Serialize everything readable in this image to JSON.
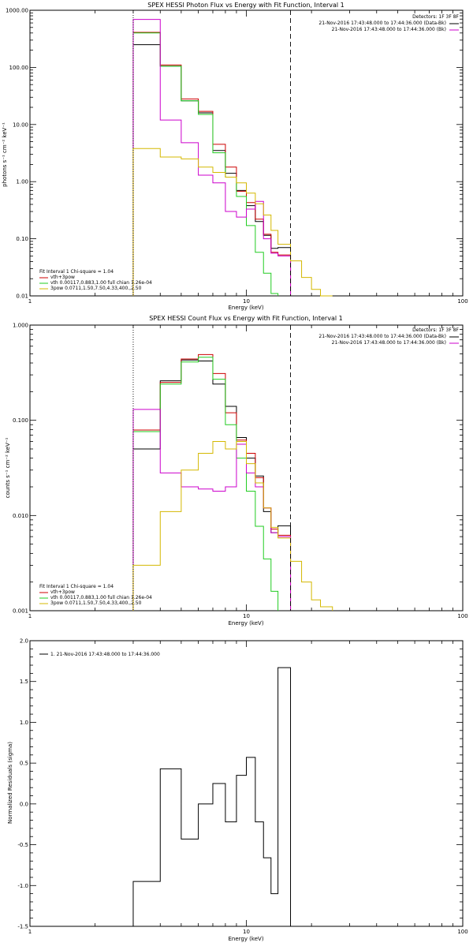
{
  "colors": {
    "data": "#000000",
    "total": "#cc0000",
    "thermal": "#22cc22",
    "nonthermal": "#d4b800",
    "background": "#cc00cc"
  },
  "chart_data": [
    {
      "id": "photon",
      "type": "line",
      "title": "SPEX HESSI Photon Flux vs Energy with Fit Function, Interval 1",
      "xlabel": "Energy (keV)",
      "ylabel": "photons s⁻¹ cm⁻² keV⁻¹",
      "xscale": "log",
      "yscale": "log",
      "xlim": [
        1,
        100
      ],
      "ylim": [
        0.01,
        1000
      ],
      "xticks": [
        {
          "v": 1,
          "label": "1"
        },
        {
          "v": 10,
          "label": "10"
        },
        {
          "v": 100,
          "label": "100"
        }
      ],
      "yticks": [
        {
          "v": 0.01,
          "label": "0.01"
        },
        {
          "v": 0.1,
          "label": "0.10"
        },
        {
          "v": 1,
          "label": "1.00"
        },
        {
          "v": 10,
          "label": "10.00"
        },
        {
          "v": 100,
          "label": "100.00"
        },
        {
          "v": 1000,
          "label": "1000.00"
        }
      ],
      "vlines": [
        {
          "x": 3.0,
          "style": "dotted"
        },
        {
          "x": 16.0,
          "style": "dashed"
        }
      ],
      "top_right": {
        "detectors": "Detectors: 1F 3F 8F",
        "lines": [
          "21-Nov-2016 17:43:48.000 to 17:44:36.000 (Data-Bk)",
          "21-Nov-2016 17:43:48.000 to 17:44:36.000 (Bk)"
        ],
        "line_colors": [
          "data",
          "background"
        ]
      },
      "legend": {
        "header": "Fit Interval  1    Chi-square = 1.04",
        "entries": [
          {
            "label": "vth+3pow",
            "color": "total"
          },
          {
            "label": "vth 0.00117,0.883,1.00   full chian 1.26e-04",
            "color": "thermal"
          },
          {
            "label": "3pow 0.0711,1.50,7.50,4.33,400.,2.50",
            "color": "nonthermal"
          }
        ]
      },
      "bin_edges": [
        3,
        4,
        5,
        6,
        7,
        8,
        9,
        10,
        11,
        12,
        13,
        14,
        16,
        18,
        20,
        22,
        25
      ],
      "series": [
        {
          "color": "data",
          "start": 0,
          "values": [
            250,
            105,
            26,
            16,
            3.5,
            1.4,
            0.7,
            0.38,
            0.2,
            0.115,
            0.068,
            0.07
          ]
        },
        {
          "color": "total",
          "start": 0,
          "values": [
            410,
            110,
            28,
            17,
            4.5,
            1.8,
            0.68,
            0.43,
            0.22,
            0.12,
            0.058,
            0.052
          ]
        },
        {
          "color": "thermal",
          "start": 0,
          "values": [
            400,
            105,
            26,
            15,
            3.2,
            1.2,
            0.55,
            0.17,
            0.058,
            0.025,
            0.011
          ]
        },
        {
          "color": "background",
          "start": 0,
          "values": [
            690,
            12,
            4.8,
            1.3,
            0.95,
            0.3,
            0.24,
            0.33,
            0.45,
            0.1,
            0.056,
            0.05
          ]
        },
        {
          "color": "nonthermal",
          "start": 0,
          "values": [
            3.8,
            2.7,
            2.5,
            1.8,
            1.45,
            1.2,
            0.95,
            0.63,
            0.41,
            0.26,
            0.14,
            0.08,
            0.041,
            0.021,
            0.013,
            0.008
          ]
        }
      ]
    },
    {
      "id": "count",
      "type": "line",
      "title": "SPEX HESSI Count Flux vs Energy with Fit Function, Interval 1",
      "xlabel": "Energy (keV)",
      "ylabel": "counts s⁻¹ cm⁻² keV⁻¹",
      "xscale": "log",
      "yscale": "log",
      "xlim": [
        1,
        100
      ],
      "ylim": [
        0.001,
        1
      ],
      "xticks": [
        {
          "v": 1,
          "label": "1"
        },
        {
          "v": 10,
          "label": "10"
        },
        {
          "v": 100,
          "label": "100"
        }
      ],
      "yticks": [
        {
          "v": 0.001,
          "label": "0.001"
        },
        {
          "v": 0.01,
          "label": "0.010"
        },
        {
          "v": 0.1,
          "label": "0.100"
        },
        {
          "v": 1,
          "label": "1.000"
        }
      ],
      "vlines": [
        {
          "x": 3.0,
          "style": "dotted"
        },
        {
          "x": 16.0,
          "style": "dashed"
        }
      ],
      "top_right": {
        "detectors": "Detectors: 1F 3F 8F",
        "lines": [
          "21-Nov-2016 17:43:48.000 to 17:44:36.000 (Data-Bk)",
          "21-Nov-2016 17:43:48.000 to 17:44:36.000 (Bk)"
        ],
        "line_colors": [
          "data",
          "background"
        ]
      },
      "legend": {
        "header": "Fit Interval  1    Chi-square = 1.04",
        "entries": [
          {
            "label": "vth+3pow",
            "color": "total"
          },
          {
            "label": "vth 0.00117,0.883,1.00   full chian 1.26e-04",
            "color": "thermal"
          },
          {
            "label": "3pow 0.0711,1.50,7.50,4.33,400.,2.50",
            "color": "nonthermal"
          }
        ]
      },
      "bin_edges": [
        3,
        4,
        5,
        6,
        7,
        8,
        9,
        10,
        11,
        12,
        13,
        14,
        16,
        18,
        20,
        22,
        25
      ],
      "series": [
        {
          "color": "data",
          "start": 0,
          "values": [
            0.05,
            0.26,
            0.43,
            0.42,
            0.24,
            0.14,
            0.066,
            0.04,
            0.026,
            0.011,
            0.0066,
            0.0078
          ]
        },
        {
          "color": "total",
          "start": 0,
          "values": [
            0.079,
            0.25,
            0.44,
            0.49,
            0.31,
            0.12,
            0.062,
            0.045,
            0.025,
            0.012,
            0.0072,
            0.0062
          ]
        },
        {
          "color": "thermal",
          "start": 0,
          "values": [
            0.076,
            0.24,
            0.41,
            0.46,
            0.27,
            0.09,
            0.04,
            0.018,
            0.0077,
            0.0035,
            0.0016
          ]
        },
        {
          "color": "background",
          "start": 0,
          "values": [
            0.13,
            0.028,
            0.02,
            0.019,
            0.018,
            0.02,
            0.056,
            0.028,
            0.02,
            0.012,
            0.0066,
            0.006
          ]
        },
        {
          "color": "nonthermal",
          "start": 0,
          "values": [
            0.003,
            0.011,
            0.03,
            0.045,
            0.06,
            0.05,
            0.06,
            0.035,
            0.022,
            0.012,
            0.0075,
            0.0058,
            0.0033,
            0.002,
            0.0013,
            0.0011
          ]
        }
      ]
    },
    {
      "id": "residuals",
      "type": "line",
      "title": "",
      "xlabel": "Energy (keV)",
      "ylabel": "Normalized Residuals (sigma)",
      "xscale": "log",
      "yscale": "linear",
      "xlim": [
        1,
        100
      ],
      "ylim": [
        -1.5,
        2.0
      ],
      "xticks": [
        {
          "v": 1,
          "label": "1"
        },
        {
          "v": 10,
          "label": "10"
        },
        {
          "v": 100,
          "label": "100"
        }
      ],
      "yticks": [
        {
          "v": -1.5,
          "label": "-1.5"
        },
        {
          "v": -1.0,
          "label": "-1.0"
        },
        {
          "v": -0.5,
          "label": "-0.5"
        },
        {
          "v": 0.0,
          "label": "0.0"
        },
        {
          "v": 0.5,
          "label": "0.5"
        },
        {
          "v": 1.0,
          "label": "1.0"
        },
        {
          "v": 1.5,
          "label": "1.5"
        },
        {
          "v": 2.0,
          "label": "2.0"
        }
      ],
      "vlines": [],
      "legend": {
        "header": "",
        "entries": [
          {
            "label": "1. 21-Nov-2016 17:43:48.000 to 17:44:36.000",
            "color": "data"
          }
        ]
      },
      "bin_edges": [
        3,
        4,
        5,
        6,
        7,
        8,
        9,
        10,
        11,
        12,
        13,
        14,
        16
      ],
      "series": [
        {
          "color": "data",
          "start": 0,
          "values": [
            -0.95,
            0.43,
            -0.43,
            0.0,
            0.25,
            -0.22,
            0.35,
            0.57,
            -0.22,
            -0.66,
            -1.1,
            1.67
          ]
        }
      ]
    }
  ]
}
